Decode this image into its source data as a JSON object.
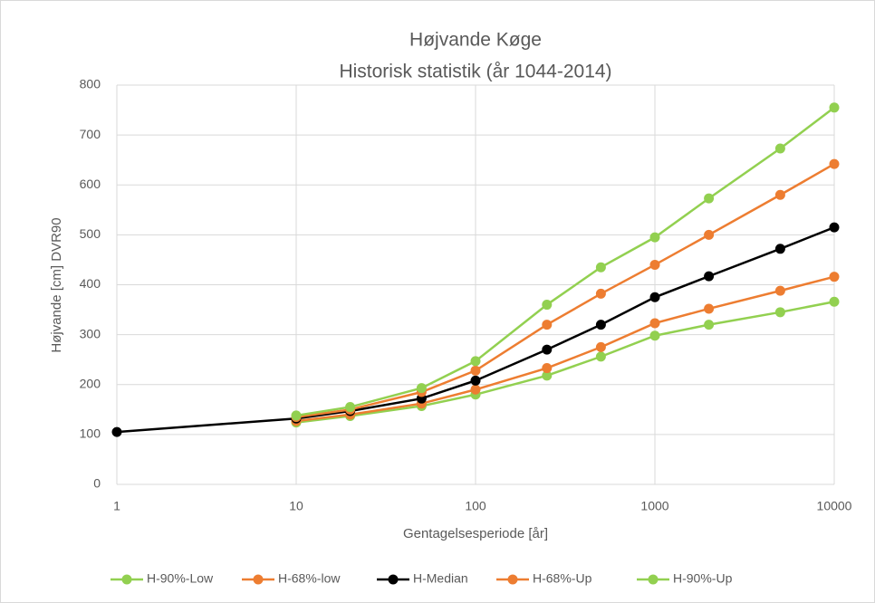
{
  "chart_data": {
    "type": "line",
    "title": "Højvande Køge",
    "subtitle": "Historisk statistik (år 1044-2014)",
    "x_label": "Gentagelsesperiode [år]",
    "y_label": "Højvande [cm] DVR90",
    "x": [
      1,
      10,
      20,
      50,
      100,
      250,
      500,
      1000,
      2000,
      5000,
      10000
    ],
    "x_scale": "log",
    "xlim": [
      1,
      10000
    ],
    "xticks": [
      1,
      10,
      100,
      1000,
      10000
    ],
    "ylim": [
      0,
      800
    ],
    "yticks": [
      0,
      100,
      200,
      300,
      400,
      500,
      600,
      700,
      800
    ],
    "grid": true,
    "legend": "bottom",
    "series": [
      {
        "name": "H-90%-Low",
        "color": "#92d050",
        "values": [
          null,
          124,
          137,
          157,
          180,
          218,
          256,
          298,
          320,
          345,
          366
        ]
      },
      {
        "name": "H-68%-low",
        "color": "#ed7d31",
        "values": [
          null,
          127,
          140,
          162,
          190,
          233,
          275,
          323,
          352,
          388,
          416
        ]
      },
      {
        "name": "H-Median",
        "color": "#000000",
        "values": [
          105,
          132,
          147,
          172,
          208,
          270,
          320,
          375,
          417,
          472,
          515
        ]
      },
      {
        "name": "H-68%-Up",
        "color": "#ed7d31",
        "values": [
          null,
          135,
          150,
          185,
          228,
          320,
          382,
          440,
          500,
          580,
          642
        ]
      },
      {
        "name": "H-90%-Up",
        "color": "#92d050",
        "values": [
          null,
          138,
          155,
          193,
          247,
          360,
          435,
          495,
          573,
          673,
          755
        ]
      }
    ]
  }
}
